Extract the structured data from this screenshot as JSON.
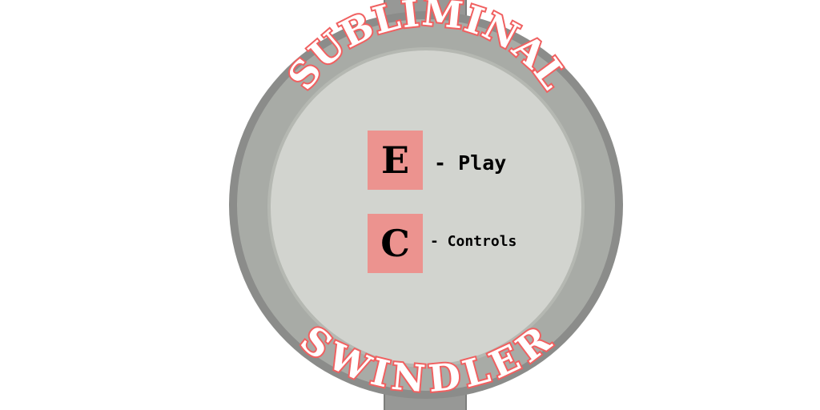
{
  "title": {
    "top_word": "SUBLIMINAL",
    "bottom_word": "SWINDLER"
  },
  "menu": {
    "items": [
      {
        "key": "E",
        "label": "- Play"
      },
      {
        "key": "C",
        "label": "- Controls"
      }
    ]
  },
  "colors": {
    "background": "#ffffff",
    "ring_outer": "#8b8c8a",
    "ring_mid": "#a8aba6",
    "face": "#d2d4cf",
    "title_outline": "#f06060",
    "key_box": "#ec938f",
    "text": "#000000"
  }
}
